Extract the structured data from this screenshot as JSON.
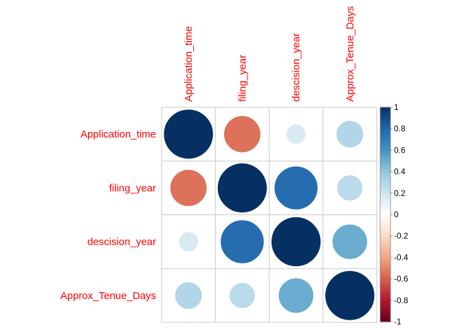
{
  "chart_data": {
    "type": "heatmap",
    "style": "corrplot-circle",
    "variables": [
      "Application_time",
      "filing_year",
      "descision_year",
      "Approx_Tenue_Days"
    ],
    "matrix": [
      [
        1.0,
        -0.55,
        0.16,
        0.3
      ],
      [
        -0.55,
        1.0,
        0.77,
        0.27
      ],
      [
        0.16,
        0.77,
        1.0,
        0.5
      ],
      [
        0.3,
        0.27,
        0.5,
        1.0
      ]
    ],
    "colorbar": {
      "range": [
        -1,
        1
      ],
      "ticks": [
        "1",
        "0.8",
        "0.6",
        "0.4",
        "0.2",
        "0",
        "-0.2",
        "-0.4",
        "-0.6",
        "-0.8",
        "-1"
      ],
      "tick_values": [
        1,
        0.8,
        0.6,
        0.4,
        0.2,
        0,
        -0.2,
        -0.4,
        -0.6,
        -0.8,
        -1
      ]
    },
    "label_color": "#FF0000",
    "grid": true,
    "legend_position": "right",
    "palette": [
      "#67001F",
      "#B2182B",
      "#D6604D",
      "#F4A582",
      "#FDDBC7",
      "#FFFFFF",
      "#D1E5F0",
      "#92C5DE",
      "#4393C3",
      "#2166AC",
      "#053061"
    ]
  }
}
